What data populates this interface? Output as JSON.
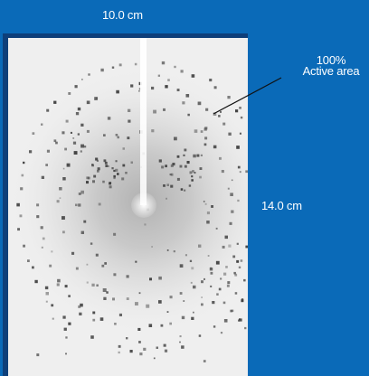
{
  "detector": {
    "width_label": "10.0 cm",
    "height_label": "14.0 cm",
    "active_area_percent": "100%",
    "active_area_text": "Active area"
  },
  "colors": {
    "background": "#0a6ab8",
    "frame": "#0e3f7a",
    "detector_face": "#efefef",
    "spots": "#3a3a3a",
    "beam": "#ffffff"
  }
}
